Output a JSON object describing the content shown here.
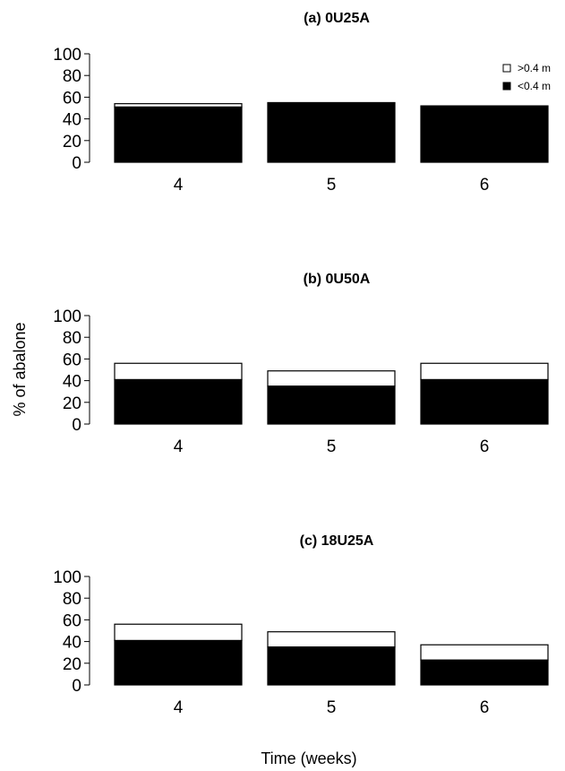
{
  "figure": {
    "xlabel": "Time (weeks)",
    "ylabel": "% of abalone"
  },
  "legend": {
    "placement": "top-right",
    "items": [
      {
        "label": ">0.4 m",
        "color": "#ffffff"
      },
      {
        "label": "<0.4 m",
        "color": "#000000"
      }
    ]
  },
  "chart_data": [
    {
      "type": "bar",
      "stacked": true,
      "title": "(a) 0U25A",
      "categories": [
        "4",
        "5",
        "6"
      ],
      "ylim": [
        0,
        100
      ],
      "yticks": [
        0,
        20,
        40,
        60,
        80,
        100
      ],
      "series": [
        {
          "name": "<0.4 m",
          "color": "#000000",
          "values": [
            51,
            55,
            52
          ]
        },
        {
          "name": ">0.4 m",
          "color": "#ffffff",
          "values": [
            3,
            0,
            0
          ]
        }
      ]
    },
    {
      "type": "bar",
      "stacked": true,
      "title": "(b) 0U50A",
      "categories": [
        "4",
        "5",
        "6"
      ],
      "ylim": [
        0,
        100
      ],
      "yticks": [
        0,
        20,
        40,
        60,
        80,
        100
      ],
      "series": [
        {
          "name": "<0.4 m",
          "color": "#000000",
          "values": [
            41,
            35,
            41
          ]
        },
        {
          "name": ">0.4 m",
          "color": "#ffffff",
          "values": [
            15,
            14,
            15
          ]
        }
      ]
    },
    {
      "type": "bar",
      "stacked": true,
      "title": "(c) 18U25A",
      "categories": [
        "4",
        "5",
        "6"
      ],
      "ylim": [
        0,
        100
      ],
      "yticks": [
        0,
        20,
        40,
        60,
        80,
        100
      ],
      "series": [
        {
          "name": "<0.4 m",
          "color": "#000000",
          "values": [
            41,
            35,
            23
          ]
        },
        {
          "name": ">0.4 m",
          "color": "#ffffff",
          "values": [
            15,
            14,
            14
          ]
        }
      ]
    }
  ]
}
